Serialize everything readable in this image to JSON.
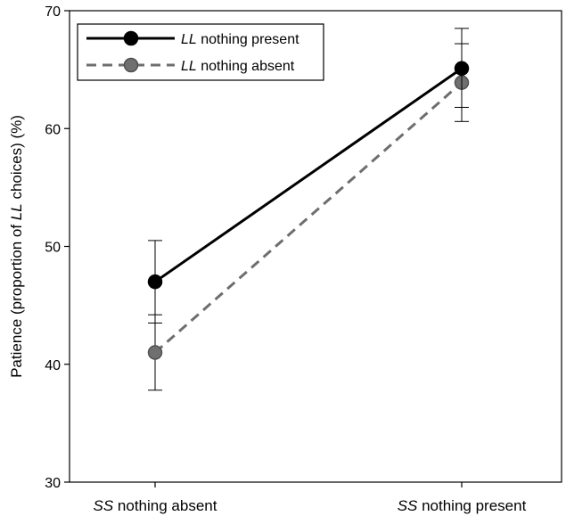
{
  "chart_data": {
    "type": "line",
    "ylabel_parts": [
      "Patience (proportion of ",
      "LL",
      " choices) (%)"
    ],
    "ylim": [
      30,
      70
    ],
    "yticks": [
      30,
      40,
      50,
      60,
      70
    ],
    "categories": [
      {
        "italic": "SS",
        "rest": " nothing absent"
      },
      {
        "italic": "SS",
        "rest": " nothing present"
      }
    ],
    "series": [
      {
        "name_italic": "LL",
        "name_rest": " nothing present",
        "values": [
          47.0,
          65.1
        ],
        "err_upper": [
          50.5,
          68.5
        ],
        "err_lower": [
          43.5,
          61.8
        ],
        "color": "#000000",
        "marker_color": "#000000",
        "dashed": false
      },
      {
        "name_italic": "LL",
        "name_rest": " nothing absent",
        "values": [
          41.0,
          63.9
        ],
        "err_upper": [
          44.2,
          67.2
        ],
        "err_lower": [
          37.8,
          60.6
        ],
        "color": "#6e6e6e",
        "marker_color": "#707070",
        "dashed": true
      }
    ],
    "legend_position": "top-left",
    "grid": false
  }
}
